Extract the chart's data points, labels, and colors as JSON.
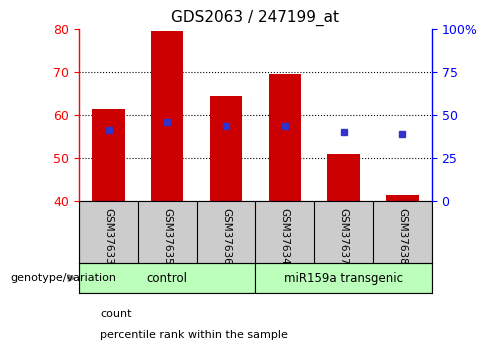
{
  "title": "GDS2063 / 247199_at",
  "categories": [
    "GSM37633",
    "GSM37635",
    "GSM37636",
    "GSM37634",
    "GSM37637",
    "GSM37638"
  ],
  "bar_tops": [
    61.5,
    79.5,
    64.5,
    69.5,
    51.0,
    41.5
  ],
  "bar_bottom": 40,
  "blue_y_left": [
    56.5,
    58.5,
    57.5,
    57.5,
    56.0,
    55.5
  ],
  "ylim_left": [
    40,
    80
  ],
  "ylim_right": [
    0,
    100
  ],
  "yticks_left": [
    40,
    50,
    60,
    70,
    80
  ],
  "yticks_right": [
    0,
    25,
    50,
    75,
    100
  ],
  "yticklabels_right": [
    "0",
    "25",
    "50",
    "75",
    "100%"
  ],
  "bar_color": "#cc0000",
  "blue_color": "#3333cc",
  "groups": [
    {
      "label": "control",
      "start": 0,
      "end": 3,
      "color": "#bbffbb"
    },
    {
      "label": "miR159a transgenic",
      "start": 3,
      "end": 6,
      "color": "#bbffbb"
    }
  ],
  "group_label_prefix": "genotype/variation",
  "legend_count_label": "count",
  "legend_pct_label": "percentile rank within the sample",
  "xlabel_bg": "#cccccc",
  "bar_width": 0.55,
  "grid_dotted_at": [
    50,
    60,
    70
  ],
  "title_fontsize": 11,
  "tick_fontsize": 9,
  "cat_fontsize": 7.5,
  "group_fontsize": 8.5,
  "legend_fontsize": 8
}
